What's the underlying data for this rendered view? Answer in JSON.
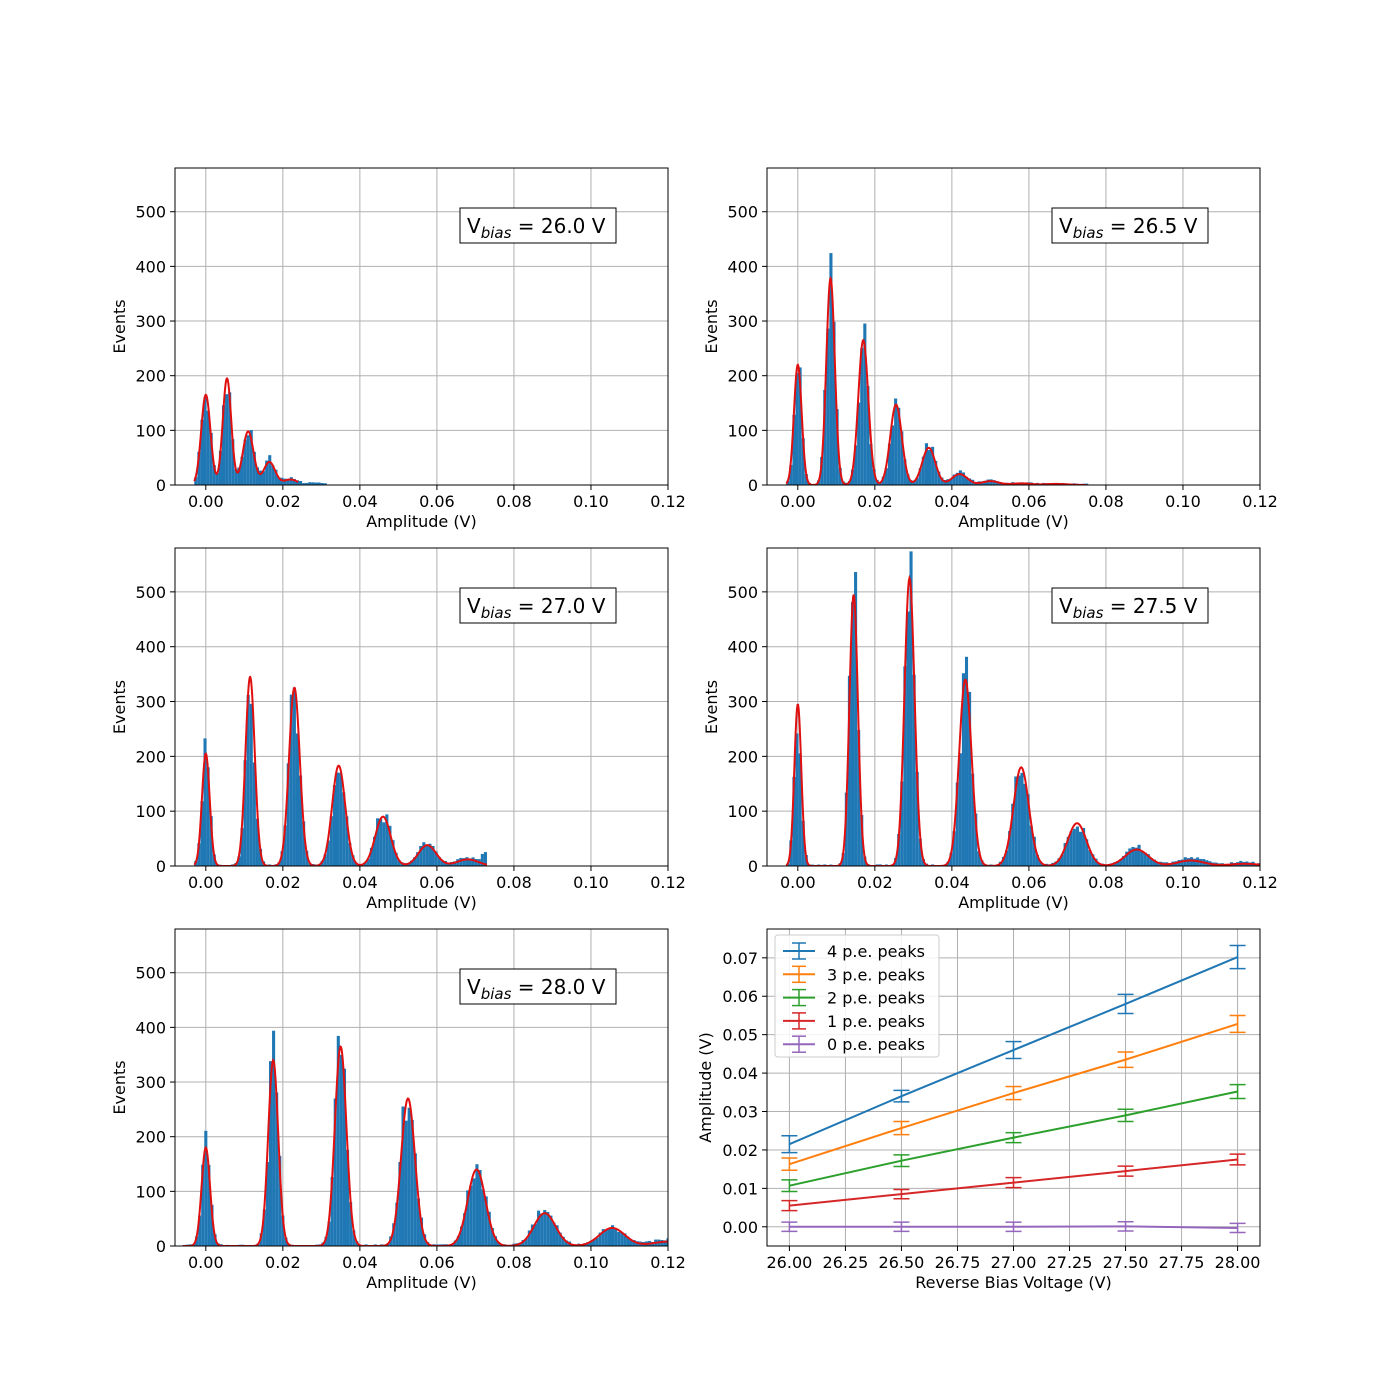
{
  "chart_data": [
    {
      "type": "bar",
      "panel": "histogram",
      "annotation": {
        "symbol": "V",
        "subscript": "bias",
        "value_text": " = 26.0 V"
      },
      "xlabel": "Amplitude (V)",
      "ylabel": "Events",
      "xlim": [
        -0.008,
        0.12
      ],
      "ylim": [
        0,
        580
      ],
      "xticks": [
        0.0,
        0.02,
        0.04,
        0.06,
        0.08,
        0.1,
        0.12
      ],
      "xtick_labels": [
        "0.00",
        "0.02",
        "0.04",
        "0.06",
        "0.08",
        "0.10",
        "0.12"
      ],
      "yticks": [
        0,
        100,
        200,
        300,
        400,
        500
      ],
      "ytick_labels": [
        "0",
        "100",
        "200",
        "300",
        "400",
        "500"
      ],
      "grid": true,
      "histogram_range": [
        -0.003,
        0.031
      ],
      "peaks": [
        [
          0.0,
          165,
          0.0012
        ],
        [
          0.0055,
          200,
          0.0011
        ],
        [
          0.011,
          100,
          0.0014
        ],
        [
          0.0165,
          45,
          0.0015
        ],
        [
          0.022,
          12,
          0.0018
        ],
        [
          0.028,
          4,
          0.002
        ]
      ],
      "fit_peaks": [
        [
          0.0,
          165,
          0.0012
        ],
        [
          0.0055,
          195,
          0.0011
        ],
        [
          0.011,
          98,
          0.0014
        ],
        [
          0.0165,
          42,
          0.0015
        ],
        [
          0.022,
          10,
          0.0018
        ]
      ],
      "fit_range": [
        -0.003,
        0.024
      ]
    },
    {
      "type": "bar",
      "panel": "histogram",
      "annotation": {
        "symbol": "V",
        "subscript": "bias",
        "value_text": " = 26.5 V"
      },
      "xlabel": "Amplitude (V)",
      "ylabel": "Events",
      "xlim": [
        -0.008,
        0.12
      ],
      "ylim": [
        0,
        580
      ],
      "xticks": [
        0.0,
        0.02,
        0.04,
        0.06,
        0.08,
        0.1,
        0.12
      ],
      "xtick_labels": [
        "0.00",
        "0.02",
        "0.04",
        "0.06",
        "0.08",
        "0.10",
        "0.12"
      ],
      "yticks": [
        0,
        100,
        200,
        300,
        400,
        500
      ],
      "ytick_labels": [
        "0",
        "100",
        "200",
        "300",
        "400",
        "500"
      ],
      "grid": true,
      "histogram_range": [
        -0.003,
        0.075
      ],
      "peaks": [
        [
          0.0,
          220,
          0.001
        ],
        [
          0.0085,
          390,
          0.0011
        ],
        [
          0.017,
          270,
          0.0013
        ],
        [
          0.0255,
          145,
          0.0015
        ],
        [
          0.034,
          70,
          0.0017
        ],
        [
          0.042,
          22,
          0.002
        ],
        [
          0.05,
          8,
          0.0022
        ],
        [
          0.058,
          3,
          0.0025
        ],
        [
          0.067,
          2,
          0.003
        ]
      ],
      "fit_peaks": [
        [
          0.0,
          220,
          0.001
        ],
        [
          0.0085,
          378,
          0.0011
        ],
        [
          0.017,
          265,
          0.0013
        ],
        [
          0.0255,
          147,
          0.0015
        ],
        [
          0.034,
          68,
          0.0017
        ],
        [
          0.042,
          20,
          0.002
        ],
        [
          0.05,
          7,
          0.0022
        ],
        [
          0.058,
          3,
          0.0025
        ],
        [
          0.067,
          2,
          0.003
        ]
      ],
      "fit_range": [
        -0.003,
        0.075
      ]
    },
    {
      "type": "bar",
      "panel": "histogram",
      "annotation": {
        "symbol": "V",
        "subscript": "bias",
        "value_text": " = 27.0 V"
      },
      "xlabel": "Amplitude (V)",
      "ylabel": "Events",
      "xlim": [
        -0.008,
        0.12
      ],
      "ylim": [
        0,
        580
      ],
      "xticks": [
        0.0,
        0.02,
        0.04,
        0.06,
        0.08,
        0.1,
        0.12
      ],
      "xtick_labels": [
        "0.00",
        "0.02",
        "0.04",
        "0.06",
        "0.08",
        "0.10",
        "0.12"
      ],
      "yticks": [
        0,
        100,
        200,
        300,
        400,
        500
      ],
      "ytick_labels": [
        "0",
        "100",
        "200",
        "300",
        "400",
        "500"
      ],
      "grid": true,
      "histogram_range": [
        -0.003,
        0.073
      ],
      "peaks": [
        [
          0.0,
          205,
          0.001
        ],
        [
          0.0115,
          345,
          0.0012
        ],
        [
          0.023,
          325,
          0.0014
        ],
        [
          0.0345,
          185,
          0.0017
        ],
        [
          0.046,
          92,
          0.002
        ],
        [
          0.0575,
          40,
          0.0023
        ],
        [
          0.068,
          15,
          0.0028
        ],
        [
          0.0725,
          25,
          0.0006
        ]
      ],
      "fit_peaks": [
        [
          0.0,
          205,
          0.001
        ],
        [
          0.0115,
          345,
          0.0012
        ],
        [
          0.023,
          325,
          0.0014
        ],
        [
          0.0345,
          183,
          0.0017
        ],
        [
          0.046,
          90,
          0.002
        ],
        [
          0.0575,
          38,
          0.0023
        ],
        [
          0.068,
          12,
          0.0028
        ]
      ],
      "fit_range": [
        -0.003,
        0.073
      ]
    },
    {
      "type": "bar",
      "panel": "histogram",
      "annotation": {
        "symbol": "V",
        "subscript": "bias",
        "value_text": " = 27.5 V"
      },
      "xlabel": "Amplitude (V)",
      "ylabel": "Events",
      "xlim": [
        -0.008,
        0.12
      ],
      "ylim": [
        0,
        580
      ],
      "xticks": [
        0.0,
        0.02,
        0.04,
        0.06,
        0.08,
        0.1,
        0.12
      ],
      "xtick_labels": [
        "0.00",
        "0.02",
        "0.04",
        "0.06",
        "0.08",
        "0.10",
        "0.12"
      ],
      "yticks": [
        0,
        100,
        200,
        300,
        400,
        500
      ],
      "ytick_labels": [
        "0",
        "100",
        "200",
        "300",
        "400",
        "500"
      ],
      "grid": true,
      "histogram_range": [
        -0.003,
        0.12
      ],
      "peaks": [
        [
          0.0,
          295,
          0.0009
        ],
        [
          0.0145,
          510,
          0.0011
        ],
        [
          0.029,
          540,
          0.0013
        ],
        [
          0.0435,
          345,
          0.0016
        ],
        [
          0.058,
          190,
          0.002
        ],
        [
          0.0725,
          80,
          0.0024
        ],
        [
          0.088,
          32,
          0.003
        ],
        [
          0.102,
          15,
          0.0035
        ],
        [
          0.116,
          6,
          0.004
        ]
      ],
      "fit_peaks": [
        [
          0.0,
          295,
          0.0009
        ],
        [
          0.0145,
          495,
          0.0011
        ],
        [
          0.029,
          525,
          0.0013
        ],
        [
          0.0435,
          340,
          0.0016
        ],
        [
          0.058,
          180,
          0.002
        ],
        [
          0.0725,
          78,
          0.0024
        ],
        [
          0.088,
          30,
          0.003
        ],
        [
          0.102,
          10,
          0.0035
        ],
        [
          0.116,
          4,
          0.004
        ]
      ],
      "fit_range": [
        -0.003,
        0.12
      ]
    },
    {
      "type": "bar",
      "panel": "histogram",
      "annotation": {
        "symbol": "V",
        "subscript": "bias",
        "value_text": " = 28.0 V"
      },
      "xlabel": "Amplitude (V)",
      "ylabel": "Events",
      "xlim": [
        -0.008,
        0.12
      ],
      "ylim": [
        0,
        580
      ],
      "xticks": [
        0.0,
        0.02,
        0.04,
        0.06,
        0.08,
        0.1,
        0.12
      ],
      "xtick_labels": [
        "0.00",
        "0.02",
        "0.04",
        "0.06",
        "0.08",
        "0.10",
        "0.12"
      ],
      "yticks": [
        0,
        100,
        200,
        300,
        400,
        500
      ],
      "ytick_labels": [
        "0",
        "100",
        "200",
        "300",
        "400",
        "500"
      ],
      "grid": true,
      "histogram_range": [
        -0.006,
        0.12
      ],
      "peaks": [
        [
          0.0,
          180,
          0.0011
        ],
        [
          0.0175,
          335,
          0.0013
        ],
        [
          0.035,
          370,
          0.0015
        ],
        [
          0.0525,
          290,
          0.0018
        ],
        [
          0.0703,
          150,
          0.0023
        ],
        [
          0.088,
          68,
          0.0028
        ],
        [
          0.1055,
          33,
          0.0033
        ],
        [
          0.12,
          12,
          0.004
        ]
      ],
      "fit_peaks": [
        [
          0.0,
          180,
          0.0011
        ],
        [
          0.0175,
          340,
          0.0013
        ],
        [
          0.035,
          365,
          0.0015
        ],
        [
          0.0525,
          270,
          0.0018
        ],
        [
          0.0703,
          140,
          0.0023
        ],
        [
          0.088,
          60,
          0.0028
        ],
        [
          0.1055,
          33,
          0.0033
        ],
        [
          0.12,
          8,
          0.004
        ]
      ],
      "fit_range": [
        -0.006,
        0.12
      ]
    },
    {
      "type": "line",
      "panel": "errorbar",
      "xlabel": "Reverse Bias Voltage (V)",
      "ylabel": "Amplitude (V)",
      "xlim": [
        25.9,
        28.1
      ],
      "ylim": [
        -0.005,
        0.0775
      ],
      "xticks": [
        26.0,
        26.25,
        26.5,
        26.75,
        27.0,
        27.25,
        27.5,
        27.75,
        28.0
      ],
      "xtick_labels": [
        "26.00",
        "26.25",
        "26.50",
        "26.75",
        "27.00",
        "27.25",
        "27.50",
        "27.75",
        "28.00"
      ],
      "yticks": [
        0.0,
        0.01,
        0.02,
        0.03,
        0.04,
        0.05,
        0.06,
        0.07
      ],
      "ytick_labels": [
        "0.00",
        "0.01",
        "0.02",
        "0.03",
        "0.04",
        "0.05",
        "0.06",
        "0.07"
      ],
      "grid": true,
      "legend": "top-left",
      "x": [
        26.0,
        26.5,
        27.0,
        27.5,
        28.0
      ],
      "series": [
        {
          "name": "4 p.e. peaks",
          "color": "#1f77b4",
          "values": [
            0.0215,
            0.034,
            0.046,
            0.058,
            0.0702
          ],
          "errors": [
            0.0022,
            0.0015,
            0.0022,
            0.0025,
            0.003
          ]
        },
        {
          "name": "3 p.e. peaks",
          "color": "#ff7f0e",
          "values": [
            0.0163,
            0.0257,
            0.0348,
            0.0435,
            0.0528
          ],
          "errors": [
            0.0016,
            0.0017,
            0.0017,
            0.002,
            0.0022
          ]
        },
        {
          "name": "2 p.e. peaks",
          "color": "#2ca02c",
          "values": [
            0.0107,
            0.0172,
            0.0232,
            0.029,
            0.0352
          ],
          "errors": [
            0.0015,
            0.0015,
            0.0013,
            0.0016,
            0.0018
          ]
        },
        {
          "name": "1 p.e. peaks",
          "color": "#d62728",
          "values": [
            0.0055,
            0.0085,
            0.0115,
            0.0145,
            0.0175
          ],
          "errors": [
            0.0013,
            0.0012,
            0.0013,
            0.0013,
            0.0014
          ]
        },
        {
          "name": "0 p.e. peaks",
          "color": "#9467bd",
          "values": [
            0.0,
            0.0,
            0.0,
            0.0001,
            -0.0003
          ],
          "errors": [
            0.0012,
            0.0012,
            0.0012,
            0.0012,
            0.0012
          ]
        }
      ]
    }
  ],
  "colors": {
    "bar": "#1f77b4",
    "fit": "#e01010",
    "grid": "#b0b0b0"
  }
}
